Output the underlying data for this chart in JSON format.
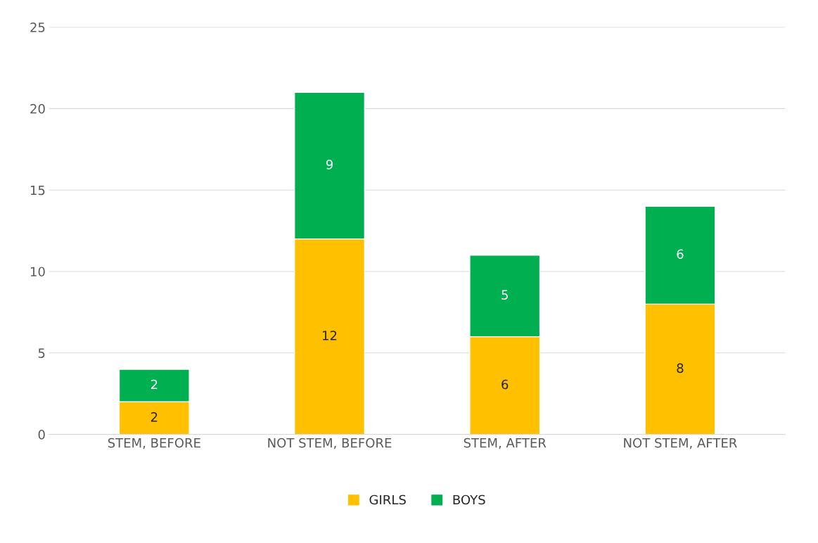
{
  "chart_data": {
    "type": "bar",
    "stacked": true,
    "categories": [
      "STEM, BEFORE",
      "NOT STEM, BEFORE",
      "STEM, AFTER",
      "NOT STEM, AFTER"
    ],
    "series": [
      {
        "name": "GIRLS",
        "color": "#ffc000",
        "values": [
          2,
          12,
          6,
          8
        ]
      },
      {
        "name": "BOYS",
        "color": "#00b050",
        "values": [
          2,
          9,
          5,
          6
        ]
      }
    ],
    "ylim": [
      0,
      25
    ],
    "yticks": [
      0,
      5,
      10,
      15,
      20,
      25
    ],
    "grid": "y",
    "legend": "bottom",
    "data_labels": true
  }
}
